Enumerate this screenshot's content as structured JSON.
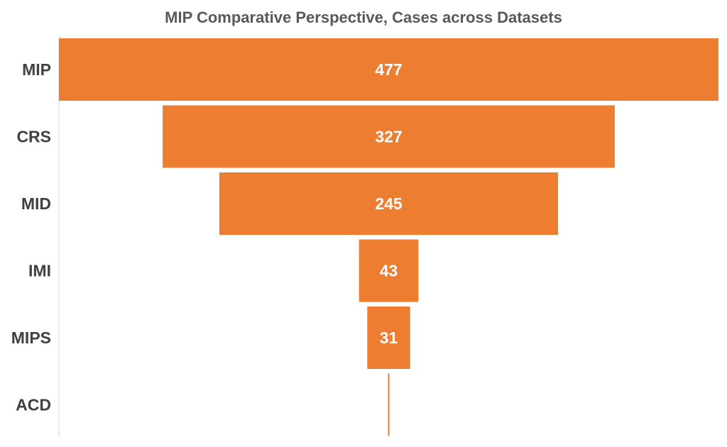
{
  "chart_data": {
    "type": "bar",
    "orientation": "funnel",
    "title": "MIP Comparative Perspective, Cases across Datasets",
    "categories": [
      "MIP",
      "CRS",
      "MID",
      "IMI",
      "MIPS",
      "ACD"
    ],
    "values": [
      477,
      327,
      245,
      43,
      31,
      1
    ],
    "data_labels": [
      "477",
      "327",
      "245",
      "43",
      "31",
      ""
    ],
    "xlabel": "",
    "ylabel": "",
    "grid": false,
    "legend": "none",
    "colors": {
      "bar": "#ED7D31",
      "label": "#FFFFFF",
      "category_text": "#404040",
      "title_text": "#595959",
      "axis_line": "#D9D9D9"
    }
  }
}
